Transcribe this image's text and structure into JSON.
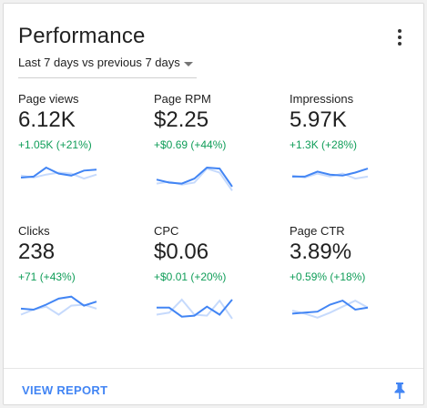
{
  "card": {
    "title": "Performance",
    "range_label": "Last 7 days vs previous 7 days",
    "footer_link": "VIEW REPORT",
    "accent_color": "#4285f4",
    "positive_color": "#0f9d58",
    "compare_line_color": "#c6dafc"
  },
  "metrics": [
    {
      "label": "Page views",
      "value": "6.12K",
      "change": "+1.05K (+21%)",
      "current": [
        40,
        42,
        60,
        48,
        44,
        54,
        56
      ],
      "previous": [
        44,
        40,
        46,
        50,
        48,
        38,
        46
      ]
    },
    {
      "label": "Page RPM",
      "value": "$2.25",
      "change": "+$0.69 (+44%)",
      "current": [
        36,
        30,
        28,
        38,
        60,
        58,
        22
      ],
      "previous": [
        28,
        32,
        26,
        30,
        58,
        50,
        14
      ]
    },
    {
      "label": "Impressions",
      "value": "5.97K",
      "change": "+1.3K (+28%)",
      "current": [
        42,
        42,
        52,
        46,
        44,
        50,
        58
      ],
      "previous": [
        44,
        40,
        48,
        42,
        48,
        38,
        42
      ]
    },
    {
      "label": "Clicks",
      "value": "238",
      "change": "+71 (+43%)",
      "current": [
        42,
        40,
        50,
        62,
        66,
        48,
        56
      ],
      "previous": [
        30,
        40,
        46,
        30,
        48,
        50,
        42
      ]
    },
    {
      "label": "CPC",
      "value": "$0.06",
      "change": "+$0.01 (+20%)",
      "current": [
        44,
        44,
        26,
        28,
        46,
        30,
        60
      ],
      "previous": [
        30,
        34,
        60,
        30,
        28,
        58,
        22
      ]
    },
    {
      "label": "Page CTR",
      "value": "3.89%",
      "change": "+0.59% (+18%)",
      "current": [
        32,
        34,
        36,
        50,
        58,
        40,
        44
      ],
      "previous": [
        38,
        32,
        24,
        34,
        46,
        58,
        44
      ]
    }
  ]
}
